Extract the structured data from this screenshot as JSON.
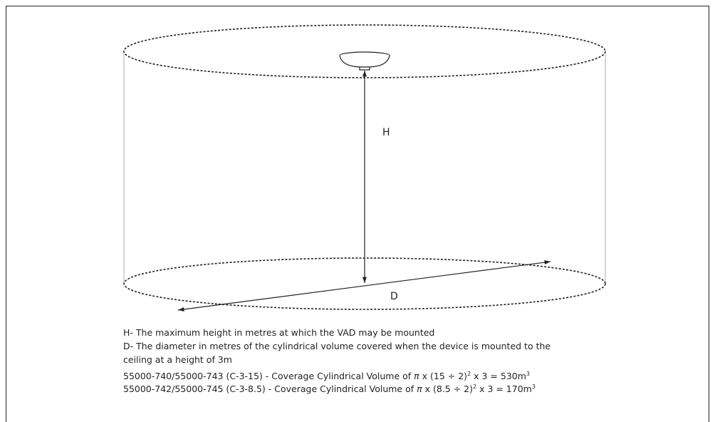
{
  "diagram": {
    "height_label": "H",
    "diameter_label": "D"
  },
  "legend": [
    "H- The maximum height in metres at which the VAD may be mounted",
    "D- The diameter in metres of the cylindrical volume covered when the device is mounted to the",
    "ceiling at a height of 3m"
  ],
  "coverage": [
    [
      "55000-740/55000-743 (C-3-15) - Coverage Cylindrical Volume of ",
      "π",
      " x (15 ÷ 2)",
      "2",
      " x 3 = 530m",
      "3"
    ],
    [
      "55000-742/55000-745 (C-3-8.5) - Coverage Cylindrical Volume of ",
      "π",
      " x (8.5 ÷ 2)",
      "2",
      " x 3 = 170m",
      "3"
    ]
  ]
}
